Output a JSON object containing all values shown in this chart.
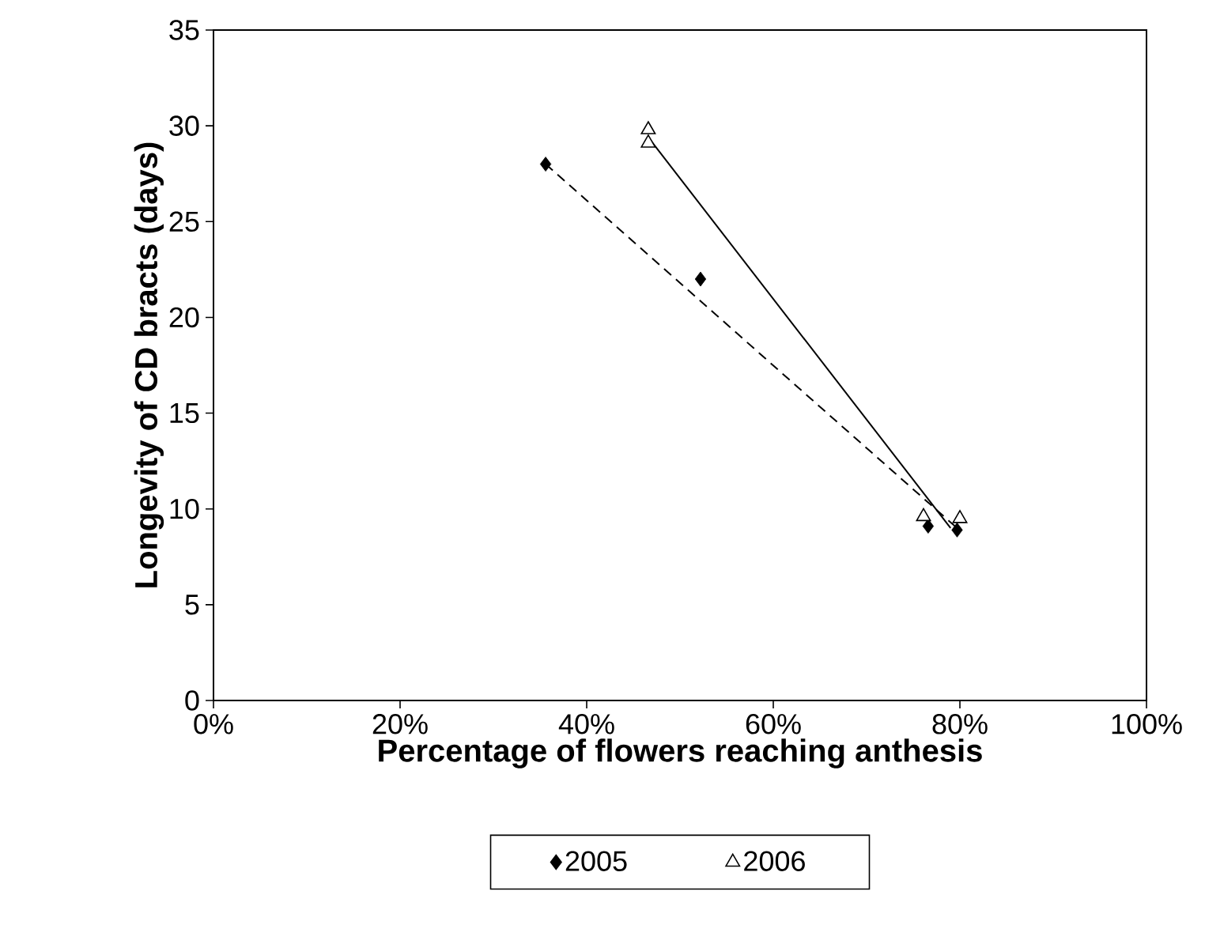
{
  "chart_data": {
    "type": "scatter",
    "xlabel": "Percentage of flowers reaching anthesis",
    "ylabel": "Longevity of CD bracts (days)",
    "series": [
      {
        "name": "2005",
        "color": "#000000",
        "marker": "diamond",
        "x": [
          35.6,
          52.2,
          76.6,
          79.7
        ],
        "values": [
          28.0,
          22.0,
          9.1,
          8.9
        ]
      },
      {
        "name": "2006",
        "color": "#000000",
        "marker": "triangle",
        "x": [
          46.6,
          46.6,
          76.1,
          80.0
        ],
        "values": [
          29.8,
          29.1,
          9.6,
          9.5
        ]
      },
      {
        "type": "line",
        "color": "#000000",
        "line_style": "dashed",
        "marker": "none",
        "x": [
          35.6,
          79.7
        ],
        "values": [
          28.0,
          9.0
        ]
      },
      {
        "type": "line",
        "color": "#000000",
        "line_style": "solid",
        "marker": "none",
        "x": [
          46.6,
          79.0
        ],
        "values": [
          29.4,
          9.0
        ]
      }
    ],
    "xlim": [
      0,
      100
    ],
    "xticks": [
      {
        "value": 0,
        "label": "0%"
      },
      {
        "value": 20,
        "label": "20%"
      },
      {
        "value": 40,
        "label": "40%"
      },
      {
        "value": 60,
        "label": "60%"
      },
      {
        "value": 80,
        "label": "80%"
      },
      {
        "value": 100,
        "label": "100%"
      }
    ],
    "ylim": [
      0,
      35
    ],
    "yticks": [
      0,
      5,
      10,
      15,
      20,
      25,
      30,
      35
    ],
    "grid": false,
    "legend": "bottom"
  }
}
